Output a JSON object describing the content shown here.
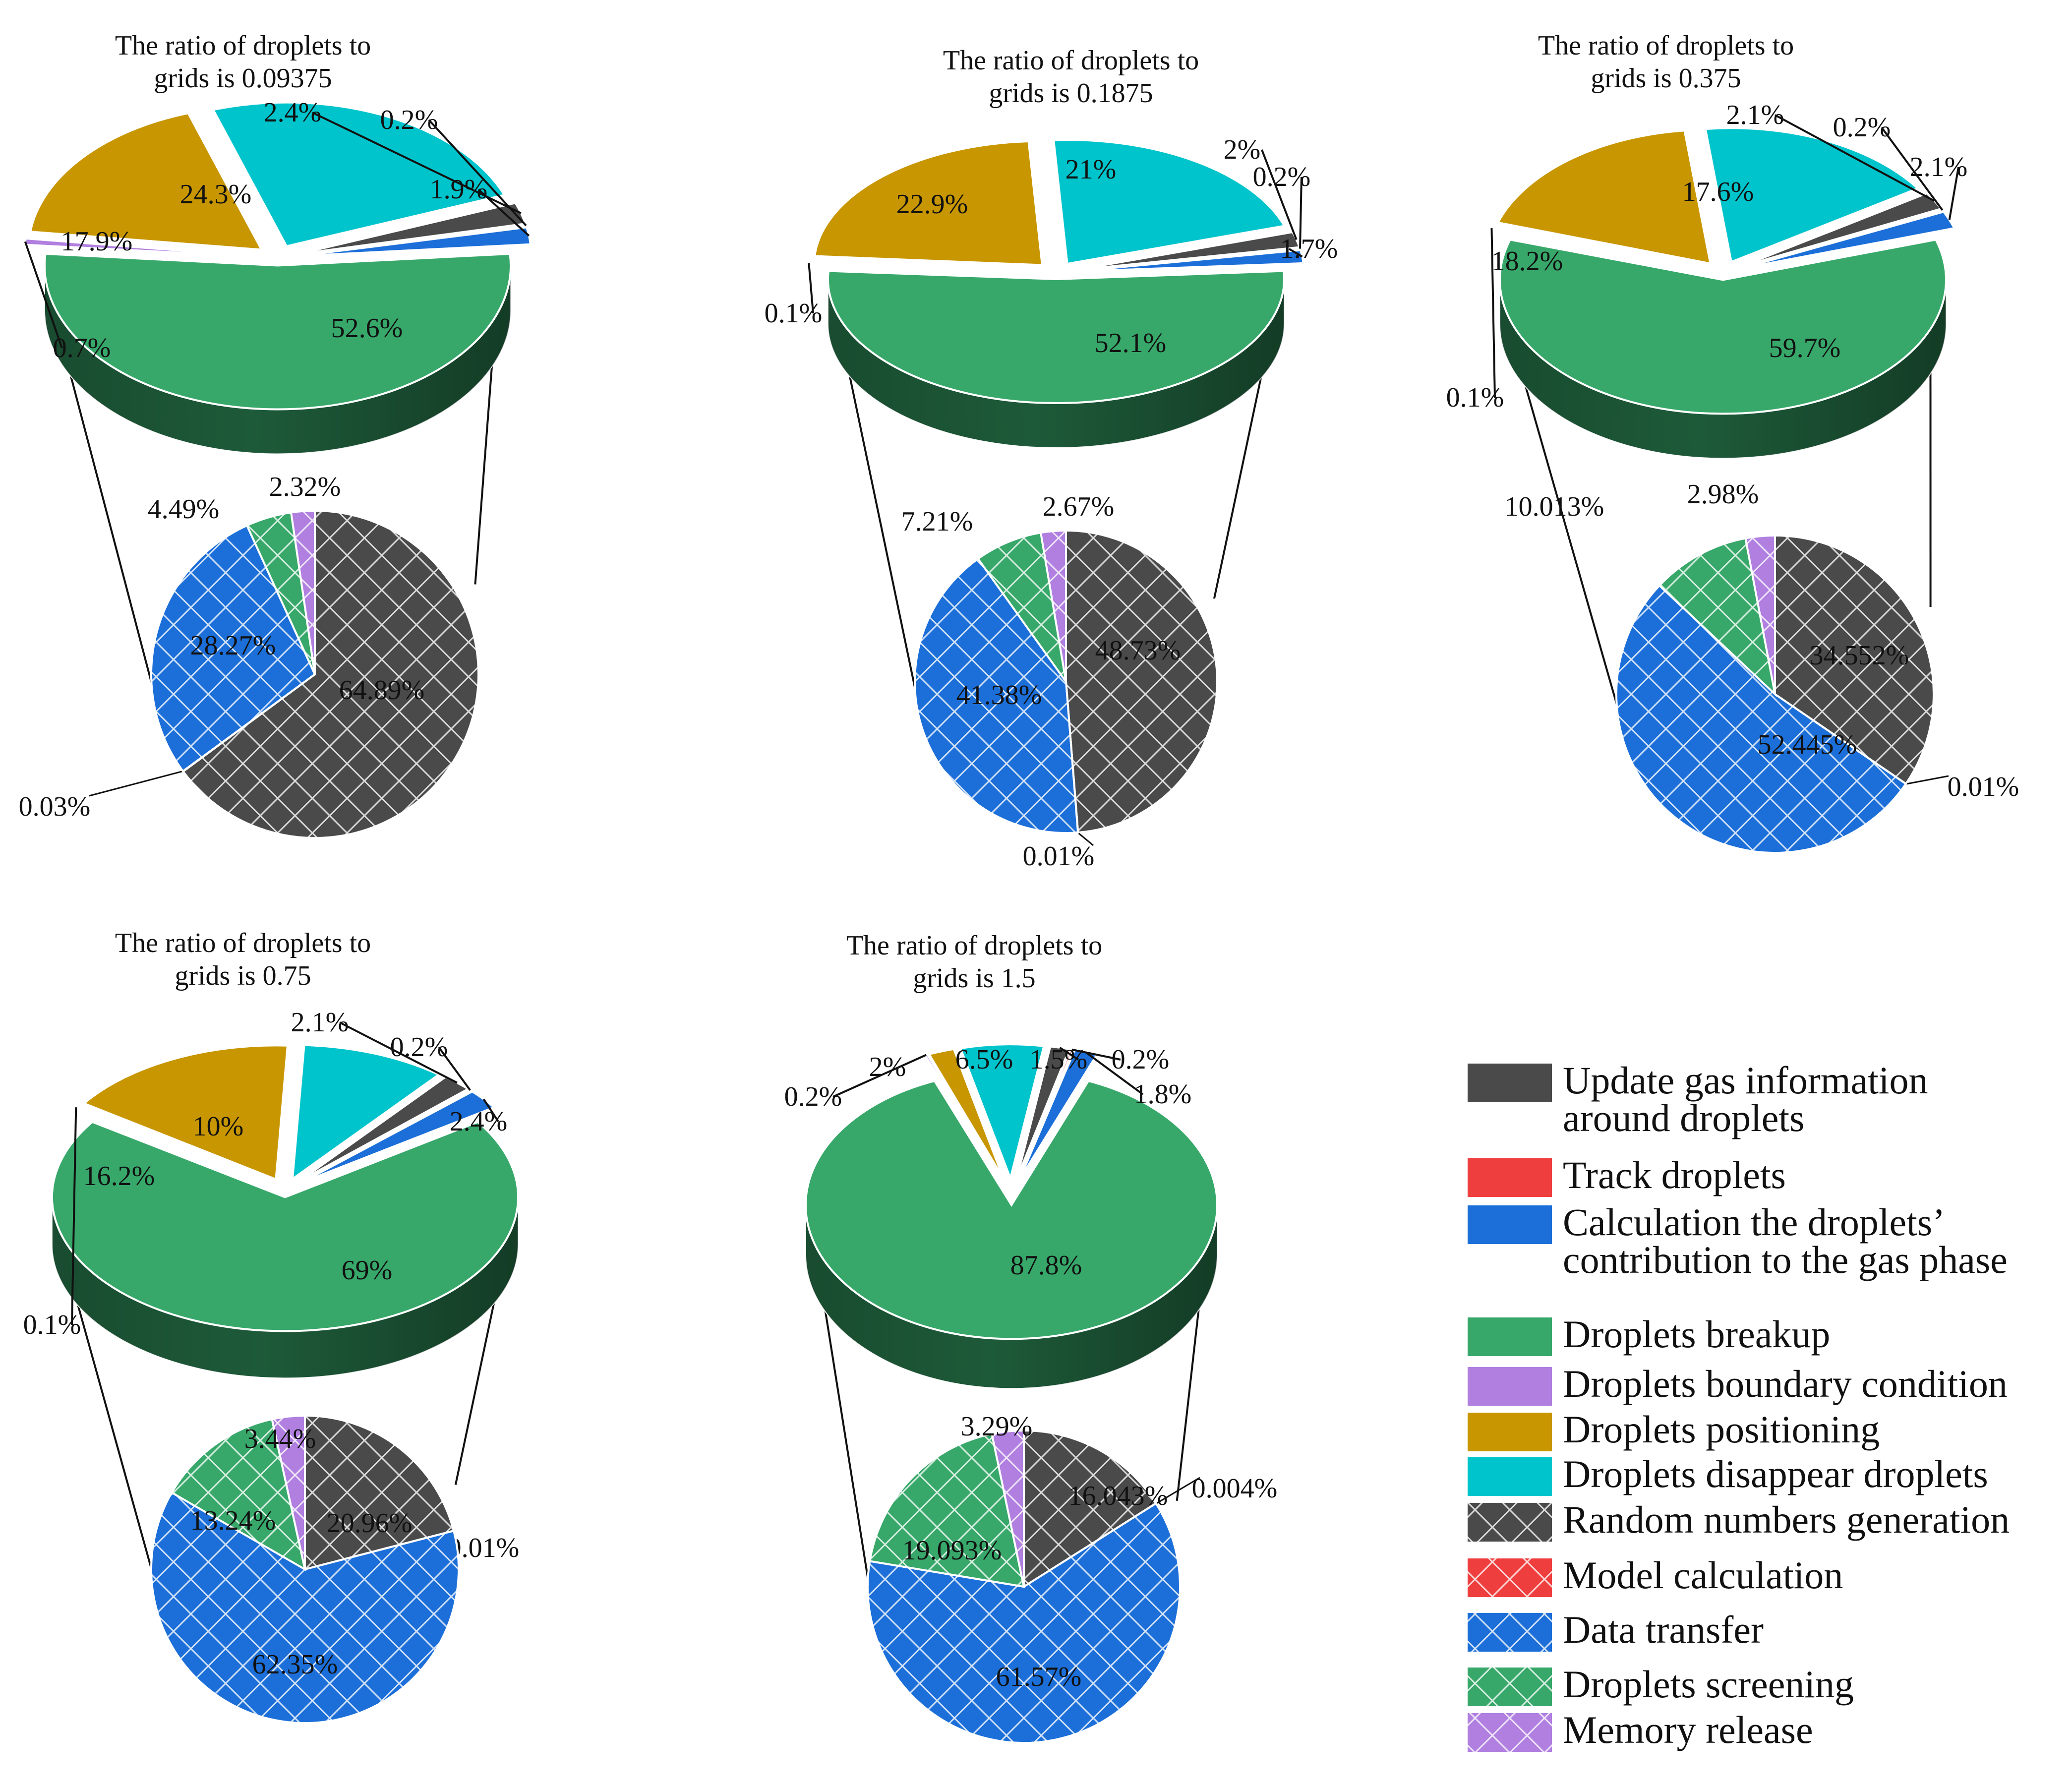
{
  "colors": {
    "update_gas": "#4a4a4a",
    "track": "#ef3e3e",
    "calc_contrib": "#1c6fd8",
    "breakup": "#37a86a",
    "boundary": "#b07fe0",
    "positioning": "#c89600",
    "disappear": "#00c4cc",
    "line": "#111111"
  },
  "legend": [
    {
      "lines": [
        "Update gas information",
        "around droplets"
      ],
      "color_key": "update_gas",
      "hatch": false
    },
    {
      "lines": [
        "Track droplets"
      ],
      "color_key": "track",
      "hatch": false
    },
    {
      "lines": [
        "Calculation the droplets’",
        "contribution to the gas phase"
      ],
      "color_key": "calc_contrib",
      "hatch": false
    },
    {
      "lines": [
        "Droplets breakup"
      ],
      "color_key": "breakup",
      "hatch": false
    },
    {
      "lines": [
        "Droplets boundary condition"
      ],
      "color_key": "boundary",
      "hatch": false
    },
    {
      "lines": [
        "Droplets positioning"
      ],
      "color_key": "positioning",
      "hatch": false
    },
    {
      "lines": [
        "Droplets disappear droplets"
      ],
      "color_key": "disappear",
      "hatch": false
    },
    {
      "lines": [
        "Random numbers generation"
      ],
      "color_key": "update_gas",
      "hatch": true
    },
    {
      "lines": [
        "Model calculation"
      ],
      "color_key": "track",
      "hatch": true
    },
    {
      "lines": [
        "Data transfer"
      ],
      "color_key": "calc_contrib",
      "hatch": true
    },
    {
      "lines": [
        "Droplets screening"
      ],
      "color_key": "breakup",
      "hatch": true
    },
    {
      "lines": [
        "Memory release"
      ],
      "color_key": "boundary",
      "hatch": true
    }
  ],
  "chart_data": [
    {
      "type": "pie",
      "title_lines": [
        "The ratio of droplets to",
        "grids is 0.09375"
      ],
      "main": {
        "slices": [
          {
            "label": "52.6%",
            "value": 52.6,
            "color_key": "breakup"
          },
          {
            "label": "0.7%",
            "value": 0.7,
            "color_key": "boundary"
          },
          {
            "label": "17.9%",
            "value": 17.9,
            "color_key": "positioning"
          },
          {
            "label": "24.3%",
            "value": 24.3,
            "color_key": "disappear"
          },
          {
            "label": "2.4%",
            "value": 2.4,
            "color_key": "update_gas"
          },
          {
            "label": "0.2%",
            "value": 0.2,
            "color_key": "track"
          },
          {
            "label": "1.9%",
            "value": 1.9,
            "color_key": "calc_contrib"
          }
        ]
      },
      "sub": {
        "slices": [
          {
            "label": "64.89%",
            "value": 64.89,
            "color_key": "update_gas"
          },
          {
            "label": "0.03%",
            "value": 0.03,
            "color_key": "track"
          },
          {
            "label": "28.27%",
            "value": 28.27,
            "color_key": "calc_contrib"
          },
          {
            "label": "4.49%",
            "value": 4.49,
            "color_key": "breakup"
          },
          {
            "label": "2.32%",
            "value": 2.32,
            "color_key": "boundary"
          }
        ]
      }
    },
    {
      "type": "pie",
      "title_lines": [
        "The ratio of droplets to",
        "grids is 0.1875"
      ],
      "main": {
        "slices": [
          {
            "label": "52.1%",
            "value": 52.1,
            "color_key": "breakup"
          },
          {
            "label": "0.1%",
            "value": 0.1,
            "color_key": "boundary"
          },
          {
            "label": "22.9%",
            "value": 22.9,
            "color_key": "positioning"
          },
          {
            "label": "21%",
            "value": 21.0,
            "color_key": "disappear"
          },
          {
            "label": "2%",
            "value": 2.0,
            "color_key": "update_gas"
          },
          {
            "label": "0.2%",
            "value": 0.2,
            "color_key": "track"
          },
          {
            "label": "1.7%",
            "value": 1.7,
            "color_key": "calc_contrib"
          }
        ]
      },
      "sub": {
        "slices": [
          {
            "label": "48.73%",
            "value": 48.73,
            "color_key": "update_gas"
          },
          {
            "label": "0.01%",
            "value": 0.01,
            "color_key": "track"
          },
          {
            "label": "41.38%",
            "value": 41.38,
            "color_key": "calc_contrib"
          },
          {
            "label": "7.21%",
            "value": 7.21,
            "color_key": "breakup"
          },
          {
            "label": "2.67%",
            "value": 2.67,
            "color_key": "boundary"
          }
        ]
      }
    },
    {
      "type": "pie",
      "title_lines": [
        "The ratio of droplets to",
        "grids is 0.375"
      ],
      "main": {
        "slices": [
          {
            "label": "59.7%",
            "value": 59.7,
            "color_key": "breakup"
          },
          {
            "label": "0.1%",
            "value": 0.1,
            "color_key": "boundary"
          },
          {
            "label": "18.2%",
            "value": 18.2,
            "color_key": "positioning"
          },
          {
            "label": "17.6%",
            "value": 17.6,
            "color_key": "disappear"
          },
          {
            "label": "2.1%",
            "value": 2.1,
            "color_key": "update_gas"
          },
          {
            "label": "0.2%",
            "value": 0.2,
            "color_key": "track"
          },
          {
            "label": "2.1%",
            "value": 2.1,
            "color_key": "calc_contrib"
          }
        ]
      },
      "sub": {
        "slices": [
          {
            "label": "34.552%",
            "value": 34.552,
            "color_key": "update_gas"
          },
          {
            "label": "0.01%",
            "value": 0.01,
            "color_key": "track"
          },
          {
            "label": "52.445%",
            "value": 52.445,
            "color_key": "calc_contrib"
          },
          {
            "label": "10.013%",
            "value": 10.013,
            "color_key": "breakup"
          },
          {
            "label": "2.98%",
            "value": 2.98,
            "color_key": "boundary"
          }
        ]
      }
    },
    {
      "type": "pie",
      "title_lines": [
        "The ratio of droplets to",
        "grids is 0.75"
      ],
      "main": {
        "slices": [
          {
            "label": "69%",
            "value": 69.0,
            "color_key": "breakup"
          },
          {
            "label": "0.1%",
            "value": 0.1,
            "color_key": "boundary"
          },
          {
            "label": "16.2%",
            "value": 16.2,
            "color_key": "positioning"
          },
          {
            "label": "10%",
            "value": 10.0,
            "color_key": "disappear"
          },
          {
            "label": "2.1%",
            "value": 2.1,
            "color_key": "update_gas"
          },
          {
            "label": "0.2%",
            "value": 0.2,
            "color_key": "track"
          },
          {
            "label": "2.4%",
            "value": 2.4,
            "color_key": "calc_contrib"
          }
        ]
      },
      "sub": {
        "slices": [
          {
            "label": "20.96%",
            "value": 20.96,
            "color_key": "update_gas"
          },
          {
            "label": "0.01%",
            "value": 0.01,
            "color_key": "track"
          },
          {
            "label": "62.35%",
            "value": 62.35,
            "color_key": "calc_contrib"
          },
          {
            "label": "13.24%",
            "value": 13.24,
            "color_key": "breakup"
          },
          {
            "label": "3.44%",
            "value": 3.44,
            "color_key": "boundary"
          }
        ]
      }
    },
    {
      "type": "pie",
      "title_lines": [
        "The ratio of droplets to",
        "grids is 1.5"
      ],
      "main": {
        "slices": [
          {
            "label": "87.8%",
            "value": 87.8,
            "color_key": "breakup"
          },
          {
            "label": "0.2%",
            "value": 0.2,
            "color_key": "boundary"
          },
          {
            "label": "2%",
            "value": 2.0,
            "color_key": "positioning"
          },
          {
            "label": "6.5%",
            "value": 6.5,
            "color_key": "disappear"
          },
          {
            "label": "1.5%",
            "value": 1.5,
            "color_key": "update_gas"
          },
          {
            "label": "0.2%",
            "value": 0.2,
            "color_key": "track"
          },
          {
            "label": "1.8%",
            "value": 1.8,
            "color_key": "calc_contrib"
          }
        ]
      },
      "sub": {
        "slices": [
          {
            "label": "16.043%",
            "value": 16.043,
            "color_key": "update_gas"
          },
          {
            "label": "0.004%",
            "value": 0.004,
            "color_key": "track"
          },
          {
            "label": "61.57%",
            "value": 61.57,
            "color_key": "calc_contrib"
          },
          {
            "label": "19.093%",
            "value": 19.093,
            "color_key": "breakup"
          },
          {
            "label": "3.29%",
            "value": 3.29,
            "color_key": "boundary"
          }
        ]
      }
    }
  ]
}
